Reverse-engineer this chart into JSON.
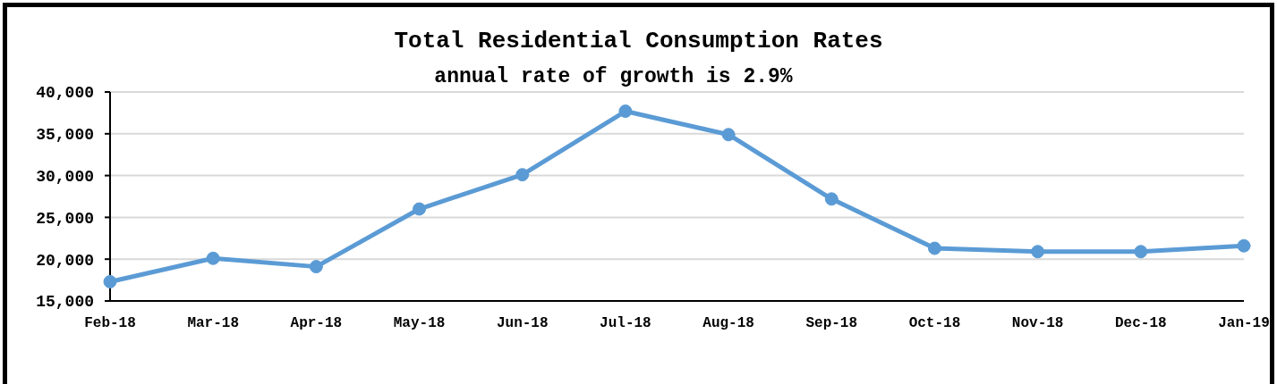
{
  "chart_data": {
    "type": "line",
    "title": "Total Residential Consumption Rates",
    "subtitle": "annual rate of growth is 2.9%",
    "categories": [
      "Feb-18",
      "Mar-18",
      "Apr-18",
      "May-18",
      "Jun-18",
      "Jul-18",
      "Aug-18",
      "Sep-18",
      "Oct-18",
      "Nov-18",
      "Dec-18",
      "Jan-19"
    ],
    "values": [
      17300,
      20100,
      19100,
      26000,
      30100,
      37700,
      34900,
      27200,
      21300,
      20900,
      20900,
      21600
    ],
    "color": "#5b9bd5",
    "ylim": [
      15000,
      40000
    ],
    "yticks": [
      {
        "value": 15000,
        "label": "15,000"
      },
      {
        "value": 20000,
        "label": "20,000"
      },
      {
        "value": 25000,
        "label": "25,000"
      },
      {
        "value": 30000,
        "label": "30,000"
      },
      {
        "value": 35000,
        "label": "35,000"
      },
      {
        "value": 40000,
        "label": "40,000"
      }
    ],
    "grid": "y",
    "marker": "circle",
    "line_style": "solid"
  }
}
